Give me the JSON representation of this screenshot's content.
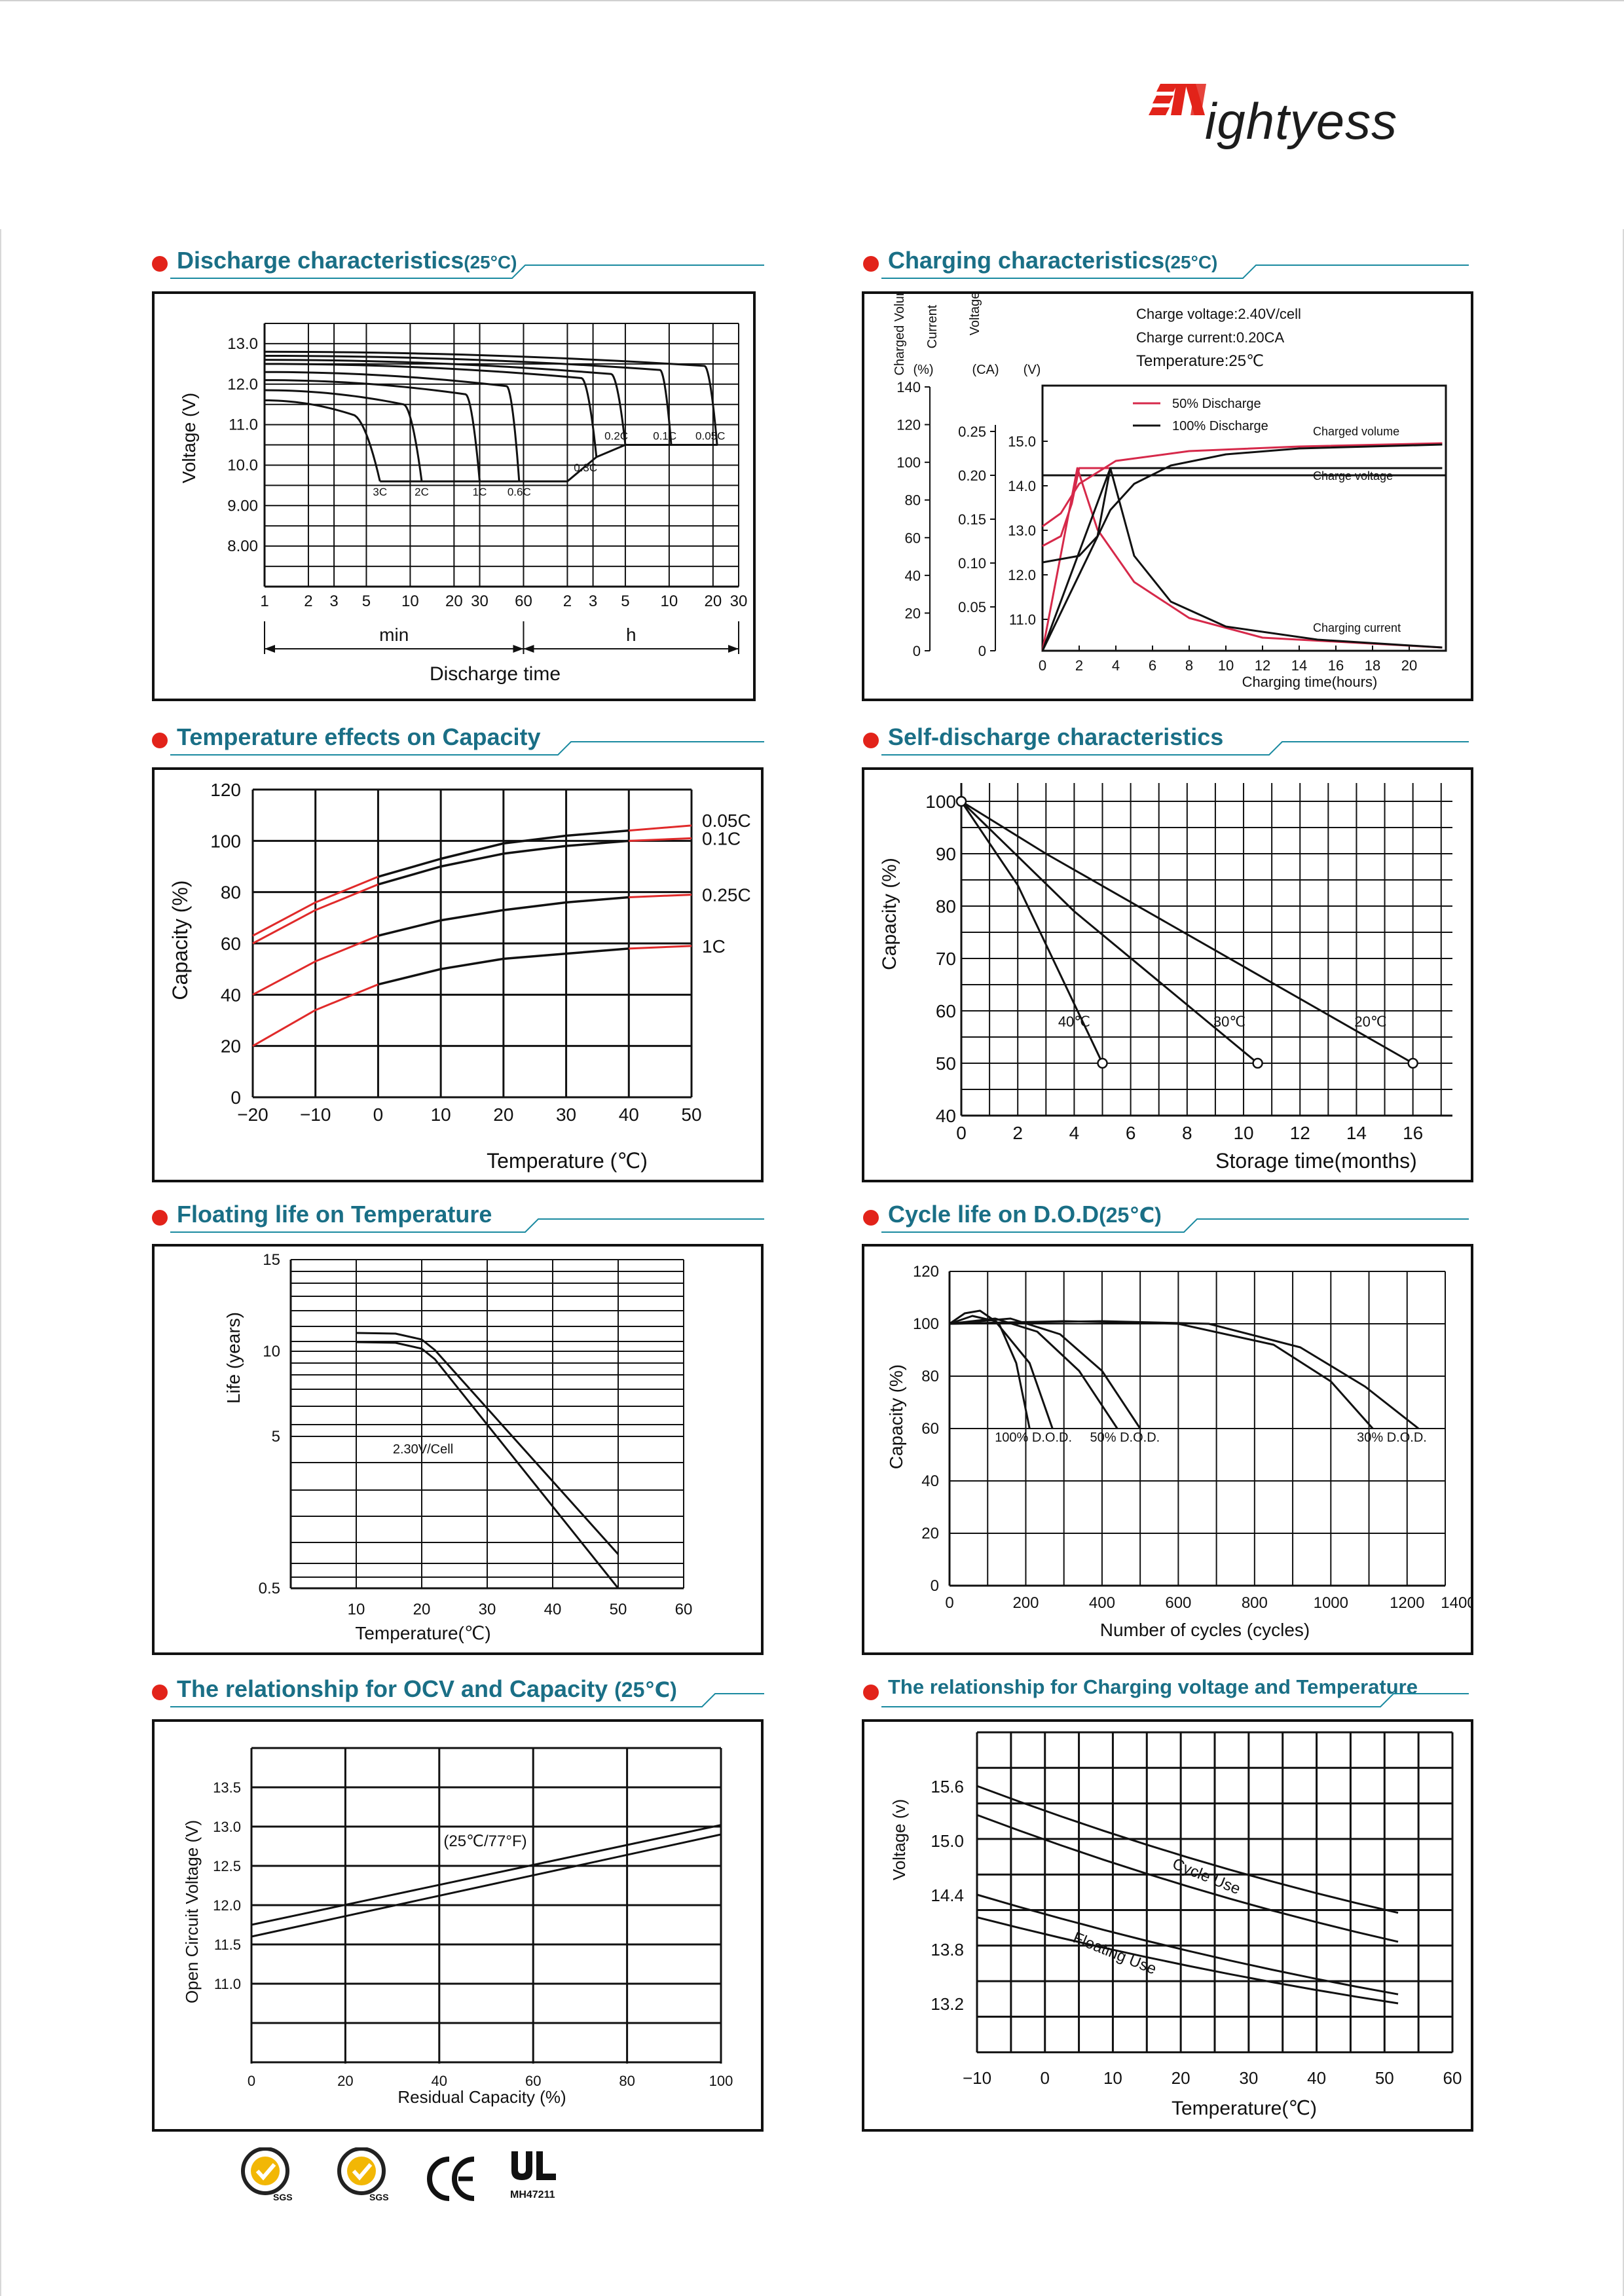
{
  "brand": {
    "name_m": "M",
    "name_rest": "ightyess",
    "accent": "#e2231a"
  },
  "sections": [
    {
      "id": "discharge",
      "title": "Discharge characteristics",
      "suffix": "(25°C)"
    },
    {
      "id": "charging",
      "title": "Charging characteristics",
      "suffix": "(25°C)"
    },
    {
      "id": "temp_capacity",
      "title": "Temperature effects on Capacity",
      "suffix": ""
    },
    {
      "id": "self_discharge",
      "title": "Self-discharge characteristics",
      "suffix": ""
    },
    {
      "id": "floating_life",
      "title": "Floating life on Temperature",
      "suffix": ""
    },
    {
      "id": "cycle_life",
      "title": "Cycle life on D.O.D",
      "suffix": "(25℃)"
    },
    {
      "id": "ocv",
      "title": "The relationship  for OCV and Capacity",
      "suffix": "(25℃)"
    },
    {
      "id": "charge_voltage",
      "title": "The relationship for Charging voltage and Temperature",
      "suffix": ""
    }
  ],
  "certifications": [
    {
      "icon": "sgs-badge-icon",
      "label": "SGS"
    },
    {
      "icon": "sgs-badge-icon",
      "label": "SGS"
    },
    {
      "icon": "ce-mark-icon",
      "label": "CE"
    },
    {
      "icon": "ul-mark-icon",
      "label": "MH47211"
    }
  ],
  "chart_data": [
    {
      "id": "discharge",
      "type": "line",
      "xlabel": "Discharge time",
      "ylabel": "Voltage (V)",
      "x_ticks": [
        "1",
        "2",
        "3",
        "5",
        "10",
        "20",
        "30",
        "60",
        "2",
        "3",
        "5",
        "10",
        "20",
        "30"
      ],
      "x_groups": [
        "min",
        "h"
      ],
      "y_ticks": [
        "13.0",
        "12.0",
        "11.0",
        "10.0",
        "9.00",
        "8.00"
      ],
      "ylim": [
        7.0,
        13.5
      ],
      "series": [
        {
          "name": "3C",
          "end_voltage": 9.6
        },
        {
          "name": "2C",
          "end_voltage": 9.6
        },
        {
          "name": "1C",
          "end_voltage": 9.6
        },
        {
          "name": "0.6C",
          "end_voltage": 9.6
        },
        {
          "name": "0.3C",
          "end_voltage": 10.2
        },
        {
          "name": "0.2C",
          "end_voltage": 10.5
        },
        {
          "name": "0.1C",
          "end_voltage": 10.5
        },
        {
          "name": "0.05C",
          "end_voltage": 10.5
        }
      ]
    },
    {
      "id": "charging",
      "type": "line",
      "xlabel": "Charging time(hours)",
      "axis_labels": [
        "Charged Volume",
        "Current",
        "Voltage"
      ],
      "axis_units": [
        "(%)",
        "(CA)",
        "(V)"
      ],
      "x": [
        0,
        2,
        4,
        6,
        8,
        10,
        12,
        14,
        16,
        18,
        20
      ],
      "volume_ticks": [
        "140",
        "120",
        "100",
        "80",
        "60",
        "40",
        "20",
        "0"
      ],
      "current_ticks": [
        "0.25",
        "0.20",
        "0.15",
        "0.10",
        "0.05",
        "0"
      ],
      "voltage_ticks": [
        "15.0",
        "14.0",
        "13.0",
        "12.0",
        "11.0"
      ],
      "notes": [
        "Charge voltage:2.40V/cell",
        "Charge current:0.20CA",
        "Temperature:25℃"
      ],
      "legend": [
        "50% Discharge",
        "100% Discharge"
      ],
      "curve_labels": [
        "Charged volume",
        "Charge voltage",
        "Charging current"
      ]
    },
    {
      "id": "temp_capacity",
      "type": "line",
      "xlabel": "Temperature (℃)",
      "ylabel": "Capacity (%)",
      "x": [
        -20,
        -10,
        0,
        10,
        20,
        30,
        40,
        50
      ],
      "ylim": [
        0,
        120
      ],
      "y_ticks": [
        0,
        20,
        40,
        60,
        80,
        100,
        120
      ],
      "series": [
        {
          "name": "0.05C",
          "values": [
            63,
            76,
            86,
            93,
            99,
            102,
            104,
            106
          ]
        },
        {
          "name": "0.1C",
          "values": [
            60,
            73,
            83,
            90,
            95,
            98,
            100,
            101
          ]
        },
        {
          "name": "0.25C",
          "values": [
            40,
            53,
            63,
            69,
            73,
            76,
            78,
            79
          ]
        },
        {
          "name": "1C",
          "values": [
            20,
            34,
            44,
            50,
            54,
            56,
            58,
            59
          ]
        }
      ]
    },
    {
      "id": "self_discharge",
      "type": "line",
      "xlabel": "Storage time(months)",
      "ylabel": "Capacity (%)",
      "x_ticks": [
        0,
        2,
        4,
        6,
        8,
        10,
        12,
        14,
        16
      ],
      "y_ticks": [
        40,
        50,
        60,
        70,
        80,
        90,
        100
      ],
      "ylim": [
        40,
        100
      ],
      "series": [
        {
          "name": "40℃",
          "points": [
            [
              0,
              100
            ],
            [
              2,
              84
            ],
            [
              5,
              50
            ]
          ]
        },
        {
          "name": "30℃",
          "points": [
            [
              0,
              100
            ],
            [
              4,
              79
            ],
            [
              10.5,
              50
            ]
          ]
        },
        {
          "name": "20℃",
          "points": [
            [
              0,
              100
            ],
            [
              3,
              90
            ],
            [
              16,
              50
            ]
          ]
        }
      ]
    },
    {
      "id": "floating_life",
      "type": "line",
      "xlabel": "Temperature(℃)",
      "ylabel": "Life (years)",
      "x_ticks": [
        10,
        20,
        30,
        40,
        50,
        60
      ],
      "y_ticks": [
        "15",
        "10",
        "5",
        "0.5"
      ],
      "series": [
        {
          "name": "2.30V/Cell",
          "points": [
            [
              10,
              10.5
            ],
            [
              20,
              10.2
            ],
            [
              50,
              0.5
            ]
          ]
        }
      ]
    },
    {
      "id": "cycle_life",
      "type": "line",
      "xlabel": "Number of cycles (cycles)",
      "ylabel": "Capacity (%)",
      "x_ticks": [
        0,
        200,
        400,
        600,
        800,
        1000,
        1200,
        1400
      ],
      "y_ticks": [
        0,
        20,
        40,
        60,
        80,
        100,
        120
      ],
      "ylim": [
        0,
        120
      ],
      "series": [
        {
          "name": "100% D.O.D."
        },
        {
          "name": "50% D.O.D."
        },
        {
          "name": "30% D.O.D."
        }
      ]
    },
    {
      "id": "ocv",
      "type": "line",
      "xlabel": "Residual Capacity (%)",
      "ylabel": "Open Circuit Voltage (V)",
      "annotation": "(25℃/77°F)",
      "x_ticks": [
        0,
        20,
        40,
        60,
        80,
        100
      ],
      "y_ticks": [
        "13.5",
        "13.0",
        "12.5",
        "12.0",
        "11.5",
        "11.0"
      ],
      "series": [
        {
          "points": [
            [
              0,
              11.6
            ],
            [
              100,
              12.9
            ]
          ]
        },
        {
          "points": [
            [
              0,
              11.75
            ],
            [
              100,
              13.02
            ]
          ]
        }
      ]
    },
    {
      "id": "charge_voltage",
      "type": "line",
      "xlabel": "Temperature(℃)",
      "ylabel": "Voltage (v)",
      "x_ticks": [
        -10,
        0,
        10,
        20,
        30,
        40,
        50,
        60
      ],
      "y_ticks": [
        "15.6",
        "15.0",
        "14.4",
        "13.8",
        "13.2"
      ],
      "series": [
        {
          "name": "Cycle Use",
          "upper": [
            [
              -10,
              15.6
            ],
            [
              52,
              14.2
            ]
          ],
          "lower": [
            [
              -10,
              15.28
            ],
            [
              52,
              13.88
            ]
          ]
        },
        {
          "name": "Floating Use",
          "upper": [
            [
              -10,
              14.4
            ],
            [
              52,
              13.3
            ]
          ],
          "lower": [
            [
              -10,
              14.15
            ],
            [
              52,
              13.2
            ]
          ]
        }
      ]
    }
  ]
}
